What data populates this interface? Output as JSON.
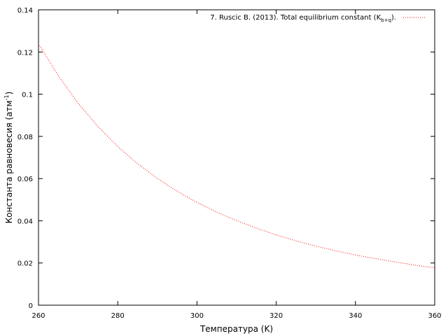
{
  "chart_data": {
    "type": "line",
    "xlabel": "Температура (K)",
    "ylabel": {
      "text": "Константа равновесия (атм",
      "sup": "-1",
      "end": ")"
    },
    "x": [
      260,
      265,
      270,
      275,
      280,
      285,
      290,
      295,
      300,
      305,
      310,
      315,
      320,
      325,
      330,
      335,
      340,
      345,
      350,
      355,
      360
    ],
    "series": [
      {
        "name": "7. Ruscic B. (2013). Total equilibrium constant (K",
        "name_sub": "b+q",
        "name_end": ").",
        "color": "#ff0000",
        "values": [
          0.124,
          0.1088,
          0.0957,
          0.0847,
          0.0752,
          0.0671,
          0.0601,
          0.054,
          0.0487,
          0.0441,
          0.0401,
          0.0365,
          0.0333,
          0.0305,
          0.028,
          0.0258,
          0.0238,
          0.0221,
          0.0205,
          0.019,
          0.0177
        ]
      }
    ],
    "xlim": [
      260,
      360
    ],
    "xticks": [
      260,
      280,
      300,
      320,
      340,
      360
    ],
    "ylim": [
      0,
      0.14
    ],
    "yticks": [
      0,
      0.02,
      0.04,
      0.06,
      0.08,
      0.1,
      0.12,
      0.14
    ],
    "grid": false,
    "legend": "top-right"
  }
}
